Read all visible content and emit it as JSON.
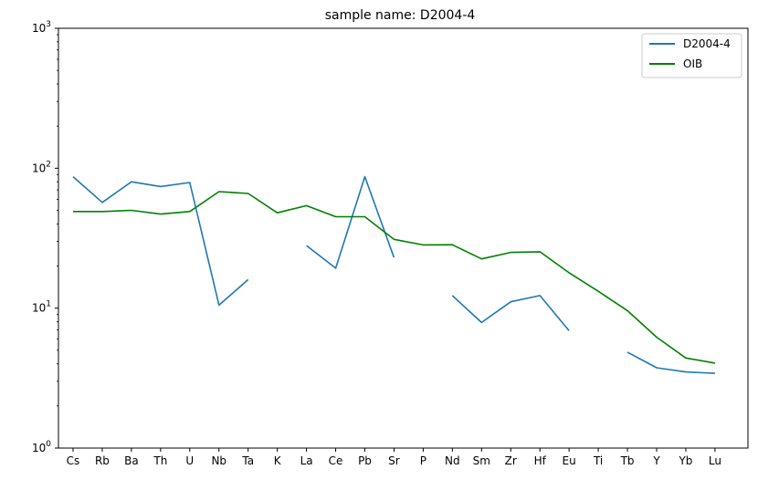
{
  "chart_data": {
    "type": "line",
    "title": "sample name: D2004-4",
    "xlabel": "",
    "ylabel": "",
    "yscale": "log",
    "ylim": [
      1,
      1000
    ],
    "y_ticks": [
      {
        "value": 1,
        "base": "10",
        "exp": "0"
      },
      {
        "value": 10,
        "base": "10",
        "exp": "1"
      },
      {
        "value": 100,
        "base": "10",
        "exp": "2"
      },
      {
        "value": 1000,
        "base": "10",
        "exp": "3"
      }
    ],
    "grid": false,
    "legend_position": "top-right",
    "categories": [
      "Cs",
      "Rb",
      "Ba",
      "Th",
      "U",
      "Nb",
      "Ta",
      "K",
      "La",
      "Ce",
      "Pb",
      "Sr",
      "P",
      "Nd",
      "Sm",
      "Zr",
      "Hf",
      "Eu",
      "Ti",
      "Tb",
      "Y",
      "Yb",
      "Lu"
    ],
    "series": [
      {
        "name": "D2004-4",
        "color": "#1f77b4",
        "values": [
          87,
          57,
          80,
          74,
          79,
          10.5,
          16,
          null,
          28,
          19.3,
          87,
          23,
          null,
          12.3,
          7.9,
          11.1,
          12.3,
          6.9,
          null,
          4.85,
          3.75,
          3.5,
          3.42
        ]
      },
      {
        "name": "OIB",
        "color": "#008000",
        "values": [
          49,
          49,
          50,
          47,
          49,
          68,
          66,
          48,
          54,
          45,
          45,
          31,
          28.3,
          28.4,
          22.5,
          25,
          25.3,
          17.9,
          13.2,
          9.6,
          6.2,
          4.4,
          4.05
        ]
      }
    ]
  }
}
